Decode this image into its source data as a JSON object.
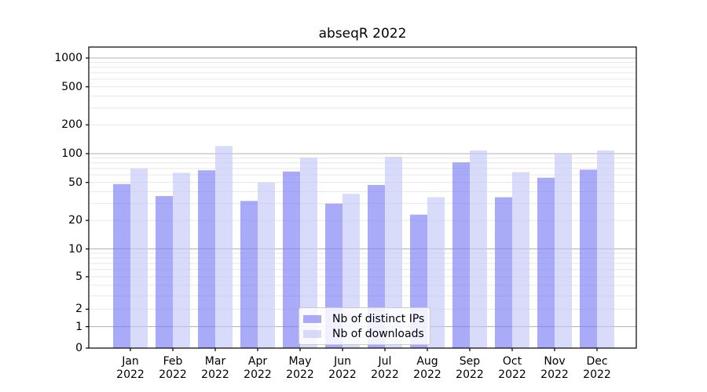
{
  "chart_data": {
    "type": "bar",
    "title": "abseqR 2022",
    "categories": [
      "Jan",
      "Feb",
      "Mar",
      "Apr",
      "May",
      "Jun",
      "Jul",
      "Aug",
      "Sep",
      "Oct",
      "Nov",
      "Dec"
    ],
    "x_tick_year": "2022",
    "series": [
      {
        "name": "Nb of distinct IPs",
        "color": "rgba(124,126,244,0.65)",
        "values": [
          48,
          36,
          67,
          32,
          65,
          30,
          47,
          23,
          81,
          35,
          56,
          68
        ]
      },
      {
        "name": "Nb of downloads",
        "color": "rgba(197,199,248,0.65)",
        "values": [
          70,
          63,
          120,
          50,
          91,
          38,
          93,
          35,
          108,
          64,
          100,
          108
        ]
      }
    ],
    "yscale": "asinh",
    "ylim": [
      0,
      1300
    ],
    "y_ticks": [
      0,
      1,
      2,
      5,
      10,
      20,
      50,
      100,
      200,
      500,
      1000
    ],
    "grid": "horizontal",
    "grid_major_values": [
      1,
      10,
      100,
      1000
    ],
    "grid_major_color": "#b0b0b0",
    "grid_minor_color": "#e7e7e7",
    "axis_color": "#000000",
    "legend_position": "lower center"
  }
}
